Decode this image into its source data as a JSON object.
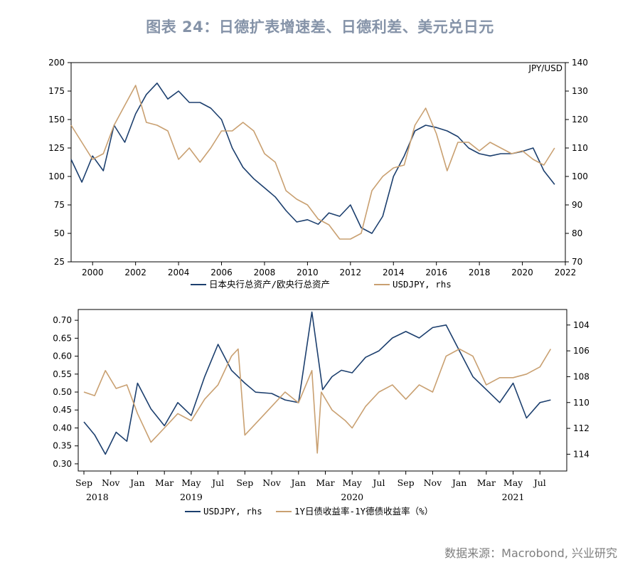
{
  "title": "图表 24：日德扩表增速差、日德利差、美元兑日元",
  "source": "数据来源：Macrobond, 兴业研究",
  "colors": {
    "navy": "#1c3f6e",
    "tan": "#c9a071",
    "title": "#8593a8"
  },
  "chart_data": [
    {
      "type": "line",
      "x_unit": "year",
      "xlim": [
        1999,
        2022
      ],
      "xticks": [
        2000,
        2002,
        2004,
        2006,
        2008,
        2010,
        2012,
        2014,
        2016,
        2018,
        2020,
        2022
      ],
      "left_axis": {
        "ylim": [
          25,
          200
        ],
        "ticks": [
          25,
          50,
          75,
          100,
          125,
          150,
          175,
          200
        ]
      },
      "right_axis": {
        "label": "JPY/USD",
        "ylim": [
          70,
          140
        ],
        "ticks": [
          70,
          80,
          90,
          100,
          110,
          120,
          130,
          140
        ]
      },
      "series": [
        {
          "name": "日本央行总资产/欧央行总资产",
          "axis": "left",
          "color": "#1c3f6e",
          "x": [
            1999.0,
            1999.5,
            2000.0,
            2000.5,
            2001.0,
            2001.5,
            2002.0,
            2002.5,
            2003.0,
            2003.5,
            2004.0,
            2004.5,
            2005.0,
            2005.5,
            2006.0,
            2006.5,
            2007.0,
            2007.5,
            2008.0,
            2008.5,
            2009.0,
            2009.5,
            2010.0,
            2010.5,
            2011.0,
            2011.5,
            2012.0,
            2012.5,
            2013.0,
            2013.5,
            2014.0,
            2014.5,
            2015.0,
            2015.5,
            2016.0,
            2016.5,
            2017.0,
            2017.5,
            2018.0,
            2018.5,
            2019.0,
            2019.5,
            2020.0,
            2020.5,
            2021.0,
            2021.5
          ],
          "y": [
            115,
            95,
            118,
            105,
            145,
            130,
            155,
            172,
            182,
            168,
            175,
            165,
            165,
            160,
            150,
            125,
            108,
            98,
            90,
            82,
            70,
            60,
            62,
            58,
            68,
            65,
            75,
            55,
            50,
            65,
            100,
            118,
            140,
            145,
            143,
            140,
            135,
            125,
            120,
            118,
            120,
            120,
            122,
            125,
            105,
            93
          ]
        },
        {
          "name": "USDJPY, rhs",
          "axis": "right",
          "color": "#c9a071",
          "x": [
            1999.0,
            1999.5,
            2000.0,
            2000.5,
            2001.0,
            2001.5,
            2002.0,
            2002.5,
            2003.0,
            2003.5,
            2004.0,
            2004.5,
            2005.0,
            2005.5,
            2006.0,
            2006.5,
            2007.0,
            2007.5,
            2008.0,
            2008.5,
            2009.0,
            2009.5,
            2010.0,
            2010.5,
            2011.0,
            2011.5,
            2012.0,
            2012.5,
            2013.0,
            2013.5,
            2014.0,
            2014.5,
            2015.0,
            2015.5,
            2016.0,
            2016.5,
            2017.0,
            2017.5,
            2018.0,
            2018.5,
            2019.0,
            2019.5,
            2020.0,
            2020.5,
            2021.0,
            2021.5
          ],
          "y": [
            118,
            112,
            106,
            108,
            118,
            125,
            132,
            119,
            118,
            116,
            106,
            110,
            105,
            110,
            116,
            116,
            119,
            116,
            108,
            105,
            95,
            92,
            90,
            85,
            83,
            78,
            78,
            80,
            95,
            100,
            103,
            104,
            118,
            124,
            115,
            102,
            112,
            112,
            109,
            112,
            110,
            108,
            109,
            106,
            104,
            110
          ]
        }
      ]
    },
    {
      "type": "line",
      "x_unit": "month",
      "xlim": [
        0,
        36
      ],
      "xticks": [
        "Sep",
        "Nov",
        "Jan",
        "Mar",
        "May",
        "Jul",
        "Sep",
        "Nov",
        "Jan",
        "Mar",
        "May",
        "Jul",
        "Sep",
        "Nov",
        "Jan",
        "Mar",
        "May",
        "Jul"
      ],
      "year_labels": [
        "2018",
        "2019",
        "2020",
        "2021"
      ],
      "left_axis": {
        "ylim": [
          0.28,
          0.73
        ],
        "ticks": [
          0.3,
          0.35,
          0.4,
          0.45,
          0.5,
          0.55,
          0.6,
          0.65,
          0.7
        ]
      },
      "right_axis": {
        "ylim": [
          115.3,
          102.8
        ],
        "inverted": true,
        "ticks": [
          104,
          106,
          108,
          110,
          112,
          114
        ]
      },
      "series": [
        {
          "name": "USDJPY, rhs",
          "axis": "right",
          "color": "#1c3f6e",
          "x": [
            0,
            0.8,
            1.6,
            2.4,
            3.2,
            4.0,
            5.0,
            6.0,
            7.0,
            8.0,
            9.0,
            10.0,
            11.0,
            12.0,
            12.8,
            14.0,
            15.0,
            16.0,
            17.0,
            17.8,
            18.5,
            19.2,
            20.0,
            21.0,
            22.0,
            23.0,
            24.0,
            25.0,
            26.0,
            27.0,
            28.0,
            29.0,
            30.0,
            31.0,
            32.0,
            33.0,
            34.0,
            34.8
          ],
          "y": [
            111.5,
            112.5,
            114.0,
            112.3,
            113.0,
            108.5,
            110.5,
            111.8,
            110.0,
            111.0,
            108.0,
            105.5,
            107.5,
            108.5,
            109.2,
            109.3,
            109.8,
            110.0,
            103.0,
            109.0,
            108.0,
            107.5,
            107.7,
            106.5,
            106.0,
            105.0,
            104.5,
            105.0,
            104.2,
            104.0,
            106.0,
            108.0,
            109.0,
            110.0,
            108.5,
            111.2,
            110.0,
            109.8
          ]
        },
        {
          "name": "1Y日债收益率-1Y德债收益率（%）",
          "axis": "left",
          "color": "#c9a071",
          "x": [
            0,
            0.8,
            1.6,
            2.4,
            3.2,
            4.0,
            5.0,
            6.0,
            7.0,
            8.0,
            9.0,
            10.0,
            11.0,
            11.5,
            12.0,
            13.0,
            14.0,
            15.0,
            16.0,
            17.0,
            17.4,
            17.7,
            18.5,
            19.5,
            20.0,
            21.0,
            22.0,
            23.0,
            24.0,
            25.0,
            26.0,
            27.0,
            28.0,
            29.0,
            30.0,
            31.0,
            32.0,
            33.0,
            34.0,
            34.8
          ],
          "y": [
            0.5,
            0.49,
            0.56,
            0.51,
            0.52,
            0.44,
            0.36,
            0.4,
            0.44,
            0.42,
            0.48,
            0.52,
            0.6,
            0.62,
            0.38,
            0.42,
            0.46,
            0.5,
            0.47,
            0.56,
            0.33,
            0.5,
            0.45,
            0.42,
            0.4,
            0.46,
            0.5,
            0.52,
            0.48,
            0.52,
            0.5,
            0.6,
            0.62,
            0.6,
            0.52,
            0.54,
            0.54,
            0.55,
            0.57,
            0.62
          ]
        }
      ]
    }
  ]
}
